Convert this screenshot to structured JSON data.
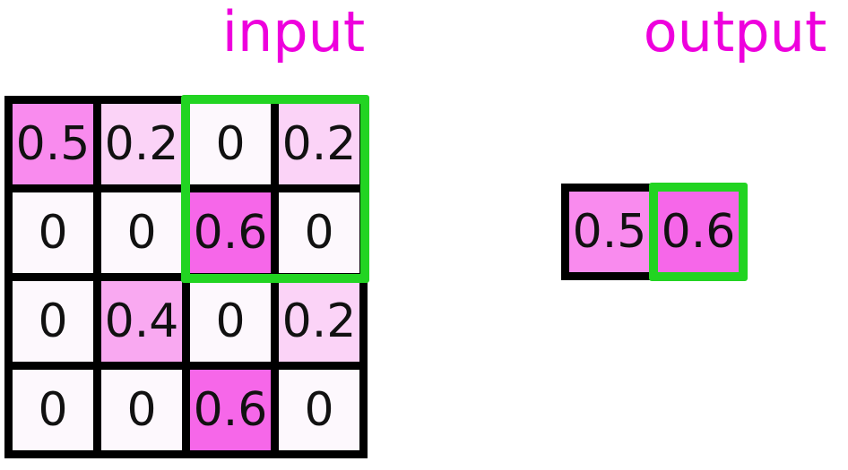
{
  "titles": {
    "input": "input",
    "output": "output"
  },
  "colors": {
    "label_text": "#ee00dd",
    "highlight_border": "#22d422",
    "grid_border": "#000000",
    "cell_text": "#111111",
    "value_fill": {
      "0": "#fdf8fd",
      "0.2": "#fbd3f7",
      "0.4": "#f9a9f1",
      "0.5": "#f98bee",
      "0.6": "#f667e9"
    }
  },
  "input_grid": {
    "rows": [
      [
        "0.5",
        "0.2",
        "0",
        "0.2"
      ],
      [
        "0",
        "0",
        "0.6",
        "0"
      ],
      [
        "0",
        "0.4",
        "0",
        "0.2"
      ],
      [
        "0",
        "0",
        "0.6",
        "0"
      ]
    ],
    "highlight_window": {
      "row_start": 0,
      "col_start": 2,
      "rows": 2,
      "cols": 2
    }
  },
  "output_grid": {
    "rows": [
      [
        "0.5",
        "0.6"
      ]
    ],
    "highlight_cell": {
      "row": 0,
      "col": 1
    }
  }
}
